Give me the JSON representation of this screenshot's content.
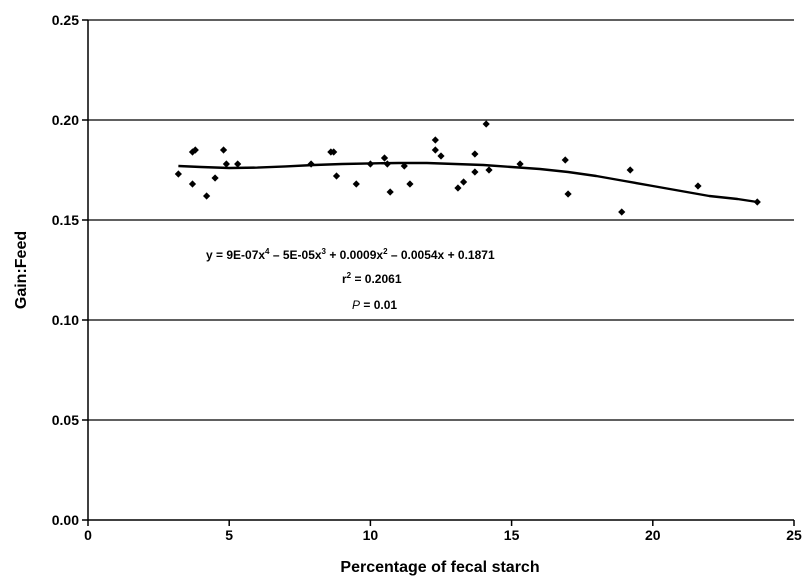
{
  "chart_data": {
    "type": "scatter",
    "title": "",
    "xlabel": "Percentage of fecal starch",
    "ylabel": "Gain:Feed",
    "xlim": [
      0,
      25
    ],
    "ylim": [
      0.0,
      0.25
    ],
    "x_ticks": [
      0,
      5,
      10,
      15,
      20,
      25
    ],
    "x_tick_labels": [
      "0",
      "5",
      "10",
      "15",
      "20",
      "25"
    ],
    "y_ticks": [
      0.0,
      0.05,
      0.1,
      0.15,
      0.2,
      0.25
    ],
    "y_tick_labels": [
      "0.00",
      "0.05",
      "0.10",
      "0.15",
      "0.20",
      "0.25"
    ],
    "grid": "horizontal",
    "points": [
      [
        3.2,
        0.173
      ],
      [
        3.7,
        0.184
      ],
      [
        3.8,
        0.185
      ],
      [
        3.7,
        0.168
      ],
      [
        4.2,
        0.162
      ],
      [
        4.5,
        0.171
      ],
      [
        4.8,
        0.185
      ],
      [
        4.9,
        0.178
      ],
      [
        5.3,
        0.178
      ],
      [
        7.9,
        0.178
      ],
      [
        8.6,
        0.184
      ],
      [
        8.7,
        0.184
      ],
      [
        8.8,
        0.172
      ],
      [
        9.5,
        0.168
      ],
      [
        10.0,
        0.178
      ],
      [
        10.5,
        0.181
      ],
      [
        10.6,
        0.178
      ],
      [
        10.7,
        0.164
      ],
      [
        11.2,
        0.177
      ],
      [
        11.4,
        0.168
      ],
      [
        12.3,
        0.19
      ],
      [
        12.3,
        0.185
      ],
      [
        12.5,
        0.182
      ],
      [
        13.1,
        0.166
      ],
      [
        13.3,
        0.169
      ],
      [
        13.7,
        0.174
      ],
      [
        13.7,
        0.183
      ],
      [
        14.1,
        0.198
      ],
      [
        14.2,
        0.175
      ],
      [
        15.3,
        0.178
      ],
      [
        16.9,
        0.18
      ],
      [
        17.0,
        0.163
      ],
      [
        18.9,
        0.154
      ],
      [
        19.2,
        0.175
      ],
      [
        21.6,
        0.167
      ],
      [
        23.7,
        0.159
      ]
    ],
    "trendline": {
      "type": "polynomial",
      "degree": 4,
      "coefficients": [
        0.1871,
        -0.0054,
        0.0009,
        -5e-05,
        9e-07
      ],
      "x_range": [
        3.2,
        23.7
      ],
      "curve_points": [
        [
          3.2,
          0.177
        ],
        [
          4,
          0.1765
        ],
        [
          5,
          0.176
        ],
        [
          6,
          0.1762
        ],
        [
          7,
          0.1768
        ],
        [
          8,
          0.1775
        ],
        [
          9,
          0.178
        ],
        [
          10,
          0.1783
        ],
        [
          11,
          0.1785
        ],
        [
          12,
          0.1785
        ],
        [
          13,
          0.178
        ],
        [
          14,
          0.1775
        ],
        [
          15,
          0.1765
        ],
        [
          16,
          0.1755
        ],
        [
          17,
          0.174
        ],
        [
          18,
          0.172
        ],
        [
          19,
          0.1695
        ],
        [
          20,
          0.167
        ],
        [
          21,
          0.1645
        ],
        [
          22,
          0.162
        ],
        [
          23,
          0.1605
        ],
        [
          23.7,
          0.159
        ]
      ]
    },
    "annotations": {
      "equation_pre": "y = 9E-07x",
      "equation_exp1": "4",
      "equation_mid1": " – 5E-05x",
      "equation_exp2": "3",
      "equation_mid2": " + 0.0009x",
      "equation_exp3": "2",
      "equation_post": " – 0.0054x + 0.1871",
      "r2_pre": "r",
      "r2_exp": "2",
      "r2_post": " = 0.2061",
      "p_symbol": "P",
      "p_post": " = 0.01"
    }
  }
}
